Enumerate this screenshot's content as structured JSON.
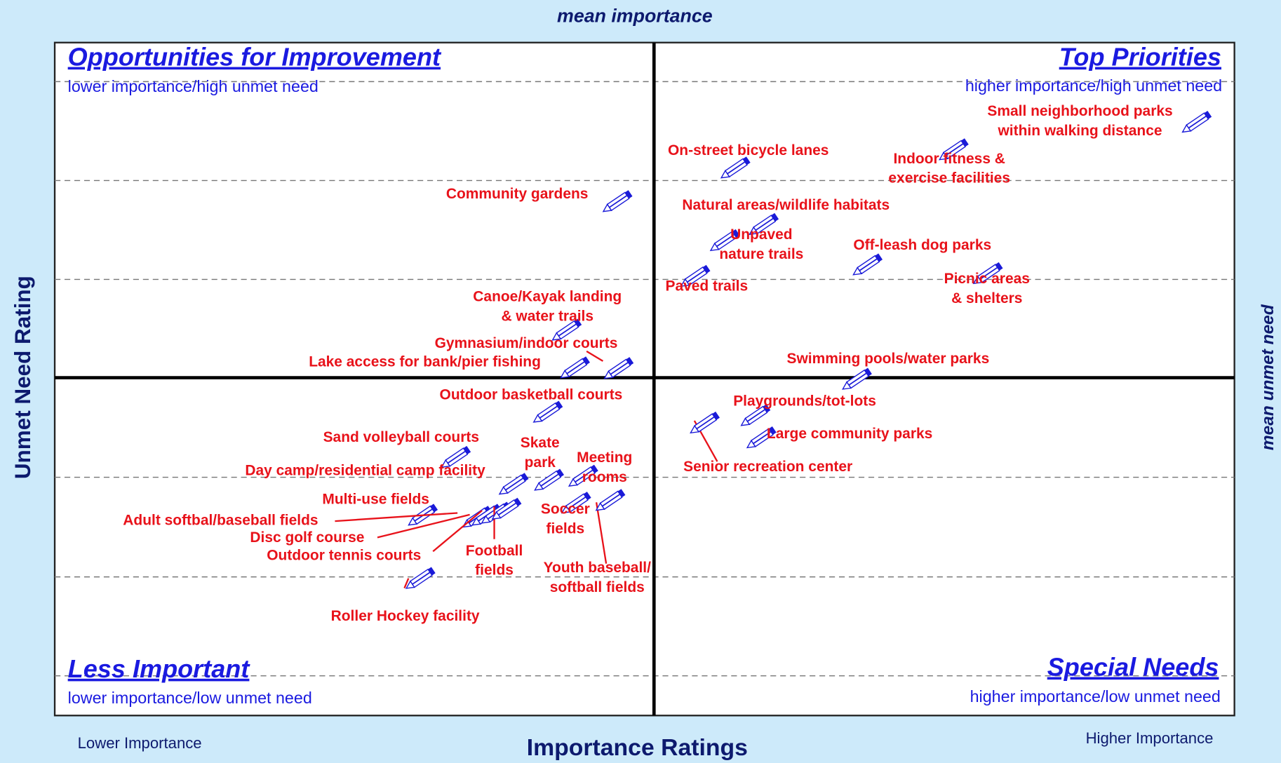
{
  "chart_data": {
    "type": "scatter",
    "title": "mean importance",
    "x_label": "Importance Ratings",
    "y_label": "Unmet Need Rating",
    "y2_label": "mean unmet need",
    "x_low_label": "Lower Importance",
    "x_high_label": "Higher Importance",
    "quadrants": [
      {
        "title": "Opportunities for Improvement",
        "subtitle": "lower importance/high unmet need"
      },
      {
        "title": "Top Priorities",
        "subtitle": "higher importance/high unmet need"
      },
      {
        "title": "Less Important",
        "subtitle": "lower importance/low unmet need"
      },
      {
        "title": "Special Needs",
        "subtitle": "higher importance/low unmet need"
      }
    ],
    "xlim": [
      0,
      100
    ],
    "ylim": [
      0,
      100
    ],
    "yticks": [
      5.9,
      20.6,
      35.4,
      64.8,
      79.5,
      94.2
    ],
    "x_divider": 50.8,
    "y_divider": 50.2,
    "grid": true,
    "label_color": "#e8121a",
    "marker_color": "#1a1ad8",
    "points": [
      {
        "label": [
          "Small neighborhood parks",
          "within walking distance"
        ],
        "x": 95.6,
        "y": 86.7
      },
      {
        "label": [
          "Indoor fitness &",
          "exercise facilities"
        ],
        "x": 75.0,
        "y": 82.6
      },
      {
        "label": [
          "On-street bicycle lanes"
        ],
        "x": 56.5,
        "y": 79.9
      },
      {
        "label": [
          "Community gardens"
        ],
        "x": 46.5,
        "y": 74.9
      },
      {
        "label": [
          "Natural areas/wildlife habitats"
        ],
        "x": 58.9,
        "y": 71.5
      },
      {
        "label": [
          "Unpaved",
          "nature trails"
        ],
        "x": 55.6,
        "y": 69.1
      },
      {
        "label": [
          "Off-leash dog parks"
        ],
        "x": 67.7,
        "y": 65.5
      },
      {
        "label": [
          "Paved trails"
        ],
        "x": 53.1,
        "y": 63.8
      },
      {
        "label": [
          "Picnic areas",
          "& shelters"
        ],
        "x": 77.9,
        "y": 64.2
      },
      {
        "label": [
          "Canoe/Kayak landing",
          "& water trails"
        ],
        "x": 42.2,
        "y": 55.8
      },
      {
        "label": [
          "Gymnasium/indoor courts"
        ],
        "x": 46.6,
        "y": 50.1
      },
      {
        "label": [
          "Lake access for bank/pier fishing"
        ],
        "x": 42.9,
        "y": 50.2
      },
      {
        "label": [
          "Swimming pools/water parks"
        ],
        "x": 66.8,
        "y": 48.5
      },
      {
        "label": [
          "Outdoor basketball courts"
        ],
        "x": 40.6,
        "y": 43.6
      },
      {
        "label": [
          "Playgrounds/tot-lots"
        ],
        "x": 58.2,
        "y": 43.1
      },
      {
        "label": [
          "Senior recreation center"
        ],
        "x": 53.9,
        "y": 42.0
      },
      {
        "label": [
          "Large community parks"
        ],
        "x": 58.7,
        "y": 39.8
      },
      {
        "label": [
          "Sand volleyball courts"
        ],
        "x": 32.8,
        "y": 36.9
      },
      {
        "label": [
          "Skate",
          "park"
        ],
        "x": 40.7,
        "y": 33.5
      },
      {
        "label": [
          "Meeting",
          "rooms"
        ],
        "x": 43.6,
        "y": 34.1
      },
      {
        "label": [
          "Day camp/residential camp facility"
        ],
        "x": 37.7,
        "y": 32.9
      },
      {
        "label": [
          "Multi-use fields"
        ],
        "x": 30.0,
        "y": 28.3
      },
      {
        "label": [
          "Adult softbal/baseball fields"
        ],
        "x": 34.6,
        "y": 28.0
      },
      {
        "label": [
          "Disc golf course"
        ],
        "x": 35.4,
        "y": 28.3
      },
      {
        "label": [
          "Outdoor tennis courts"
        ],
        "x": 36.2,
        "y": 28.6
      },
      {
        "label": [
          "Football",
          "fields"
        ],
        "x": 37.1,
        "y": 29.2
      },
      {
        "label": [
          "Soccer",
          "fields"
        ],
        "x": 43.0,
        "y": 30.1
      },
      {
        "label": [
          "Youth baseball/",
          "softball fields"
        ],
        "x": 45.9,
        "y": 30.5
      },
      {
        "label": [
          "Roller Hockey facility"
        ],
        "x": 29.8,
        "y": 18.9
      }
    ]
  }
}
